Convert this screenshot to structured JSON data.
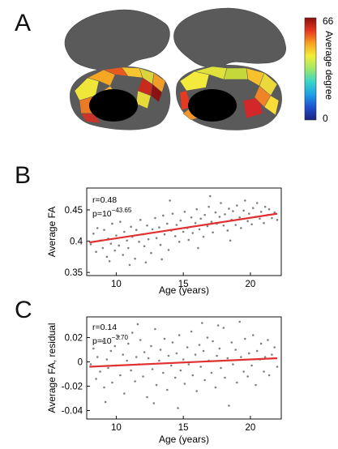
{
  "panels": {
    "a": {
      "letter": "A",
      "colorbar": {
        "label": "Average degree",
        "max_label": "66",
        "min_label": "0",
        "colors": [
          "#1a237e",
          "#1f4fd0",
          "#1ca0e6",
          "#39d6c8",
          "#9ee86a",
          "#f2ee3a",
          "#f7a21e",
          "#e4361e",
          "#8b0f0f"
        ]
      },
      "region_colors": {
        "left": [
          "#f0e63a",
          "#f5a623",
          "#e8591e",
          "#f7c62e",
          "#d9d53a",
          "#f29d26",
          "#c92a1c",
          "#8b1212",
          "#eb7a25",
          "#f4b832",
          "#e6d93a",
          "#c8342a"
        ],
        "right": [
          "#f3ea3b",
          "#dfe23a",
          "#c5d83b",
          "#e63a20",
          "#f0962a",
          "#f7c02d",
          "#ead93a",
          "#d2282a",
          "#ef8426",
          "#f9dc38"
        ]
      }
    },
    "b": {
      "letter": "B",
      "stats": {
        "r": "r=0.48",
        "p_base": "p=10",
        "p_exp": "−43.65"
      }
    },
    "c": {
      "letter": "C",
      "stats": {
        "r": "r=0.14",
        "p_base": "p=10",
        "p_exp": "−3.70"
      }
    }
  },
  "chart_data": [
    {
      "type": "scatter",
      "title": "",
      "xlabel": "Age (years)",
      "ylabel": "Average FA",
      "xlim": [
        7.8,
        22.3
      ],
      "ylim": [
        0.345,
        0.485
      ],
      "x_ticks": [
        10,
        15,
        20
      ],
      "y_ticks": [
        0.35,
        0.4,
        0.45
      ],
      "x_tick_labels": [
        "10",
        "15",
        "20"
      ],
      "y_tick_labels": [
        "0.35",
        "0.4",
        "0.45"
      ],
      "grid": false,
      "point_color": "#808080",
      "fit_line": {
        "x": [
          8,
          22
        ],
        "y": [
          0.398,
          0.444
        ],
        "color": "#e03030"
      },
      "points": [
        [
          8.1,
          0.395
        ],
        [
          8.3,
          0.412
        ],
        [
          8.5,
          0.383
        ],
        [
          8.6,
          0.421
        ],
        [
          8.8,
          0.401
        ],
        [
          9.0,
          0.389
        ],
        [
          9.1,
          0.418
        ],
        [
          9.3,
          0.375
        ],
        [
          9.4,
          0.404
        ],
        [
          9.6,
          0.396
        ],
        [
          9.7,
          0.428
        ],
        [
          9.9,
          0.385
        ],
        [
          10.0,
          0.409
        ],
        [
          10.2,
          0.393
        ],
        [
          10.3,
          0.431
        ],
        [
          10.5,
          0.378
        ],
        [
          10.6,
          0.415
        ],
        [
          10.8,
          0.401
        ],
        [
          10.9,
          0.389
        ],
        [
          11.1,
          0.423
        ],
        [
          11.2,
          0.407
        ],
        [
          11.4,
          0.372
        ],
        [
          11.5,
          0.418
        ],
        [
          11.7,
          0.399
        ],
        [
          11.8,
          0.434
        ],
        [
          12.0,
          0.411
        ],
        [
          12.1,
          0.392
        ],
        [
          12.3,
          0.425
        ],
        [
          12.4,
          0.403
        ],
        [
          12.6,
          0.381
        ],
        [
          12.7,
          0.419
        ],
        [
          12.9,
          0.437
        ],
        [
          13.0,
          0.405
        ],
        [
          13.2,
          0.422
        ],
        [
          13.3,
          0.394
        ],
        [
          13.5,
          0.441
        ],
        [
          13.6,
          0.411
        ],
        [
          13.8,
          0.428
        ],
        [
          13.9,
          0.386
        ],
        [
          14.1,
          0.417
        ],
        [
          14.2,
          0.444
        ],
        [
          14.4,
          0.408
        ],
        [
          14.5,
          0.426
        ],
        [
          14.7,
          0.399
        ],
        [
          14.8,
          0.433
        ],
        [
          15.0,
          0.415
        ],
        [
          15.1,
          0.447
        ],
        [
          15.3,
          0.421
        ],
        [
          15.4,
          0.402
        ],
        [
          15.6,
          0.438
        ],
        [
          15.7,
          0.413
        ],
        [
          15.9,
          0.429
        ],
        [
          16.0,
          0.451
        ],
        [
          16.2,
          0.419
        ],
        [
          16.3,
          0.436
        ],
        [
          16.5,
          0.407
        ],
        [
          16.6,
          0.442
        ],
        [
          16.8,
          0.424
        ],
        [
          16.9,
          0.455
        ],
        [
          17.1,
          0.431
        ],
        [
          17.2,
          0.414
        ],
        [
          17.4,
          0.446
        ],
        [
          17.5,
          0.428
        ],
        [
          17.7,
          0.439
        ],
        [
          17.8,
          0.461
        ],
        [
          18.0,
          0.425
        ],
        [
          18.1,
          0.443
        ],
        [
          18.3,
          0.417
        ],
        [
          18.4,
          0.452
        ],
        [
          18.6,
          0.434
        ],
        [
          18.7,
          0.448
        ],
        [
          18.9,
          0.426
        ],
        [
          19.0,
          0.457
        ],
        [
          19.2,
          0.438
        ],
        [
          19.3,
          0.421
        ],
        [
          19.5,
          0.449
        ],
        [
          19.6,
          0.465
        ],
        [
          19.8,
          0.432
        ],
        [
          19.9,
          0.444
        ],
        [
          20.1,
          0.427
        ],
        [
          20.2,
          0.453
        ],
        [
          20.4,
          0.439
        ],
        [
          20.5,
          0.461
        ],
        [
          20.7,
          0.436
        ],
        [
          20.8,
          0.447
        ],
        [
          21.0,
          0.429
        ],
        [
          21.1,
          0.455
        ],
        [
          21.3,
          0.442
        ],
        [
          21.4,
          0.451
        ],
        [
          21.6,
          0.437
        ],
        [
          21.8,
          0.446
        ],
        [
          22.0,
          0.434
        ],
        [
          11.0,
          0.362
        ],
        [
          12.2,
          0.366
        ],
        [
          13.4,
          0.371
        ],
        [
          9.5,
          0.368
        ],
        [
          16.1,
          0.389
        ],
        [
          18.5,
          0.401
        ],
        [
          14.0,
          0.465
        ],
        [
          17.0,
          0.472
        ]
      ]
    },
    {
      "type": "scatter",
      "title": "",
      "xlabel": "Age (years)",
      "ylabel": "Average FA, residual",
      "xlim": [
        7.8,
        22.3
      ],
      "ylim": [
        -0.047,
        0.037
      ],
      "x_ticks": [
        10,
        15,
        20
      ],
      "y_ticks": [
        -0.04,
        -0.02,
        0,
        0.02
      ],
      "x_tick_labels": [
        "10",
        "15",
        "20"
      ],
      "y_tick_labels": [
        "-0.04",
        "-0.02",
        "0",
        "0.02"
      ],
      "grid": false,
      "point_color": "#808080",
      "fit_line": {
        "x": [
          8,
          22
        ],
        "y": [
          -0.004,
          0.003
        ],
        "color": "#e03030"
      },
      "points": [
        [
          8.1,
          -0.002
        ],
        [
          8.3,
          0.011
        ],
        [
          8.5,
          -0.014
        ],
        [
          8.6,
          0.004
        ],
        [
          8.8,
          -0.008
        ],
        [
          9.0,
          0.017
        ],
        [
          9.1,
          -0.021
        ],
        [
          9.3,
          0.002
        ],
        [
          9.4,
          -0.005
        ],
        [
          9.6,
          0.009
        ],
        [
          9.7,
          -0.017
        ],
        [
          9.9,
          0.013
        ],
        [
          10.0,
          -0.003
        ],
        [
          10.2,
          0.021
        ],
        [
          10.3,
          -0.011
        ],
        [
          10.5,
          0.006
        ],
        [
          10.6,
          -0.026
        ],
        [
          10.8,
          0.001
        ],
        [
          10.9,
          0.015
        ],
        [
          11.1,
          -0.007
        ],
        [
          11.2,
          0.024
        ],
        [
          11.4,
          -0.016
        ],
        [
          11.5,
          0.004
        ],
        [
          11.7,
          -0.002
        ],
        [
          11.8,
          0.018
        ],
        [
          12.0,
          -0.012
        ],
        [
          12.1,
          0.008
        ],
        [
          12.3,
          -0.029
        ],
        [
          12.4,
          0.003
        ],
        [
          12.6,
          0.013
        ],
        [
          12.7,
          -0.006
        ],
        [
          12.9,
          0.027
        ],
        [
          13.0,
          -0.019
        ],
        [
          13.2,
          0.001
        ],
        [
          13.3,
          0.01
        ],
        [
          13.5,
          -0.009
        ],
        [
          13.6,
          0.019
        ],
        [
          13.8,
          -0.023
        ],
        [
          13.9,
          0.005
        ],
        [
          14.1,
          -0.003
        ],
        [
          14.2,
          0.016
        ],
        [
          14.4,
          -0.013
        ],
        [
          14.5,
          0.007
        ],
        [
          14.7,
          0.022
        ],
        [
          14.8,
          -0.007
        ],
        [
          15.0,
          0.002
        ],
        [
          15.1,
          -0.018
        ],
        [
          15.3,
          0.012
        ],
        [
          15.4,
          -0.002
        ],
        [
          15.6,
          0.025
        ],
        [
          15.7,
          -0.011
        ],
        [
          15.9,
          0.006
        ],
        [
          16.0,
          -0.024
        ],
        [
          16.2,
          0.014
        ],
        [
          16.3,
          -0.004
        ],
        [
          16.5,
          0.009
        ],
        [
          16.6,
          -0.015
        ],
        [
          16.8,
          0.02
        ],
        [
          16.9,
          0.001
        ],
        [
          17.1,
          -0.009
        ],
        [
          17.2,
          0.017
        ],
        [
          17.4,
          -0.021
        ],
        [
          17.5,
          0.005
        ],
        [
          17.7,
          0.011
        ],
        [
          17.8,
          -0.005
        ],
        [
          18.0,
          0.028
        ],
        [
          18.1,
          -0.013
        ],
        [
          18.3,
          0.003
        ],
        [
          18.4,
          -0.036
        ],
        [
          18.6,
          0.016
        ],
        [
          18.7,
          -0.002
        ],
        [
          18.9,
          0.01
        ],
        [
          19.0,
          -0.017
        ],
        [
          19.2,
          0.033
        ],
        [
          19.3,
          0.004
        ],
        [
          19.5,
          -0.008
        ],
        [
          19.6,
          0.019
        ],
        [
          19.8,
          -0.012
        ],
        [
          19.9,
          0.007
        ],
        [
          20.1,
          -0.003
        ],
        [
          20.2,
          0.022
        ],
        [
          20.4,
          -0.019
        ],
        [
          20.5,
          0.009
        ],
        [
          20.7,
          0.002
        ],
        [
          20.8,
          0.015
        ],
        [
          21.0,
          -0.008
        ],
        [
          21.1,
          0.004
        ],
        [
          21.3,
          0.018
        ],
        [
          21.4,
          -0.011
        ],
        [
          21.6,
          0.006
        ],
        [
          21.8,
          0.012
        ],
        [
          22.0,
          -0.004
        ],
        [
          9.2,
          -0.033
        ],
        [
          11.6,
          0.031
        ],
        [
          14.6,
          -0.038
        ],
        [
          16.4,
          0.032
        ],
        [
          12.8,
          -0.034
        ],
        [
          17.6,
          0.03
        ]
      ]
    }
  ]
}
